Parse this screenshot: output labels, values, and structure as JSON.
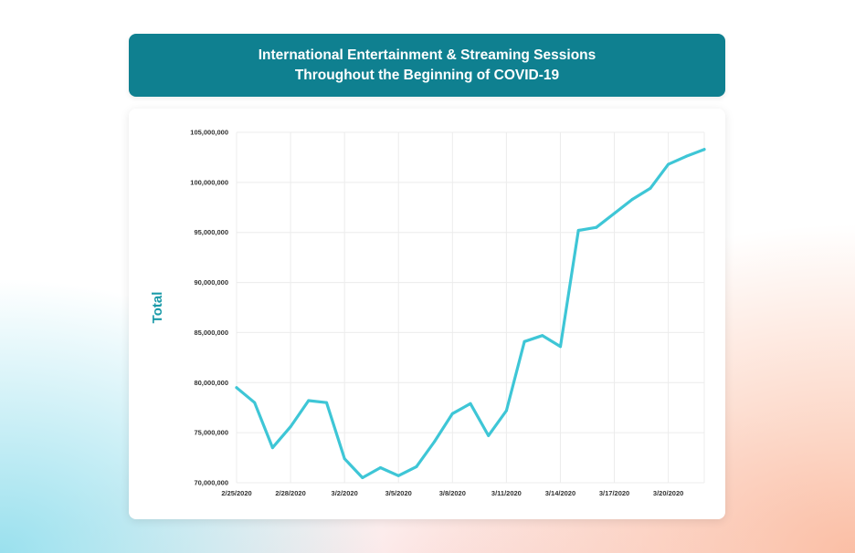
{
  "colors": {
    "banner": "#0f8090",
    "line": "#3ec6d6",
    "axis_title": "#1a9aa8"
  },
  "chart_data": {
    "type": "line",
    "title_lines": [
      "International Entertainment & Streaming Sessions",
      "Throughout the Beginning of COVID-19"
    ],
    "xlabel": "",
    "ylabel": "Total",
    "ylim": [
      70000000,
      105000000
    ],
    "y_ticks": [
      70000000,
      75000000,
      80000000,
      85000000,
      90000000,
      95000000,
      100000000,
      105000000
    ],
    "y_tick_labels": [
      "70,000,000",
      "75,000,000",
      "80,000,000",
      "85,000,000",
      "90,000,000",
      "95,000,000",
      "100,000,000",
      "105,000,000"
    ],
    "x_tick_labels": [
      "2/25/2020",
      "2/28/2020",
      "3/2/2020",
      "3/5/2020",
      "3/8/2020",
      "3/11/2020",
      "3/14/2020",
      "3/17/2020",
      "3/20/2020"
    ],
    "x": [
      "2/25/2020",
      "2/26/2020",
      "2/27/2020",
      "2/28/2020",
      "2/29/2020",
      "3/1/2020",
      "3/2/2020",
      "3/3/2020",
      "3/4/2020",
      "3/5/2020",
      "3/6/2020",
      "3/7/2020",
      "3/8/2020",
      "3/9/2020",
      "3/10/2020",
      "3/11/2020",
      "3/12/2020",
      "3/13/2020",
      "3/14/2020",
      "3/15/2020",
      "3/16/2020",
      "3/17/2020",
      "3/18/2020",
      "3/19/2020",
      "3/20/2020",
      "3/21/2020",
      "3/22/2020"
    ],
    "values": [
      79500000,
      78000000,
      73500000,
      75600000,
      78200000,
      78000000,
      72400000,
      70500000,
      71500000,
      70700000,
      71600000,
      74100000,
      76900000,
      77900000,
      74700000,
      77200000,
      84100000,
      84700000,
      83600000,
      95200000,
      95500000,
      96900000,
      98300000,
      99400000,
      101800000,
      102600000,
      103300000
    ],
    "grid": true,
    "legend": "none"
  }
}
